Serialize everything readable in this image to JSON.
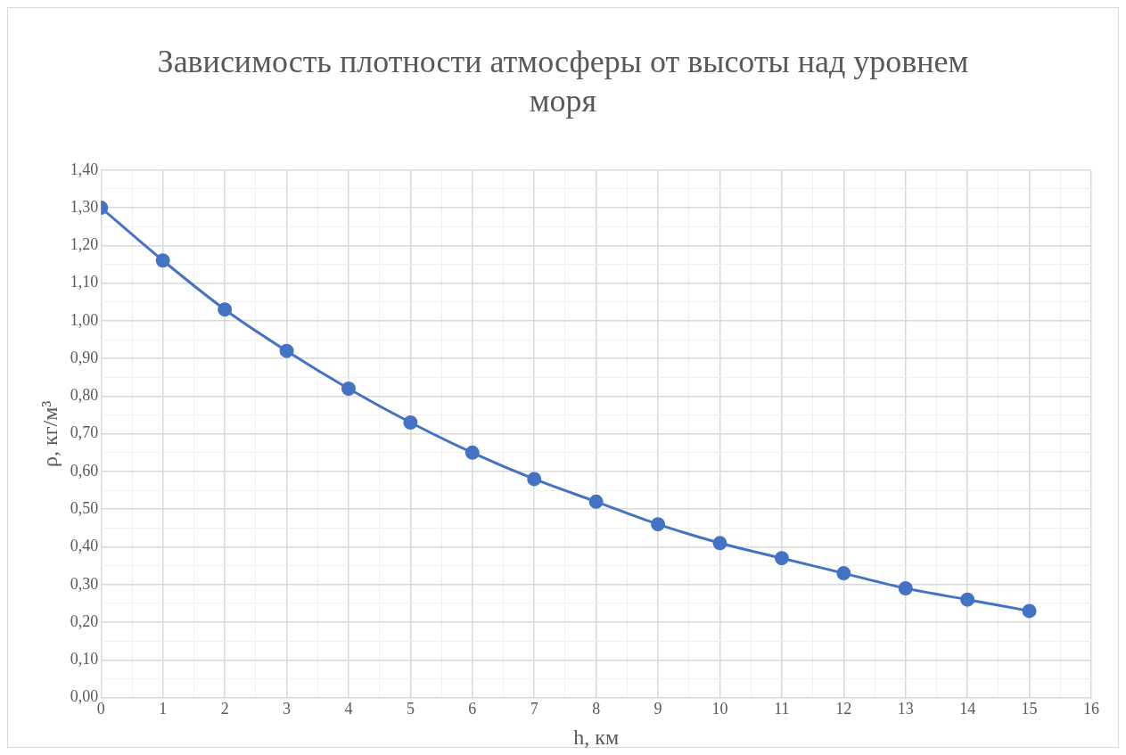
{
  "chart_data": {
    "type": "line",
    "title": "Зависимость плотности атмосферы от высоты  над уровнем моря",
    "xlabel": "h, км",
    "ylabel": "ρ, кг/м³",
    "x": [
      0,
      1,
      2,
      3,
      4,
      5,
      6,
      7,
      8,
      9,
      10,
      11,
      12,
      13,
      14,
      15
    ],
    "series": [
      {
        "color": "#4472c4",
        "values": [
          1.3,
          1.16,
          1.03,
          0.92,
          0.82,
          0.73,
          0.65,
          0.58,
          0.52,
          0.46,
          0.41,
          0.37,
          0.33,
          0.29,
          0.26,
          0.23
        ]
      }
    ],
    "xlim": [
      0,
      16
    ],
    "xticks": [
      0,
      {
        "value": 0.5,
        "label": null
      },
      1,
      {
        "value": 1.5,
        "label": null
      },
      2,
      {
        "value": 2.5,
        "label": null
      },
      3,
      {
        "value": 3.5,
        "label": null
      },
      4,
      {
        "value": 4.5,
        "label": null
      },
      5,
      {
        "value": 5.5,
        "label": null
      },
      6,
      {
        "value": 6.5,
        "label": null
      },
      7,
      {
        "value": 7.5,
        "label": null
      },
      8,
      {
        "value": 8.5,
        "label": null
      },
      9,
      {
        "value": 9.5,
        "label": null
      },
      10,
      {
        "value": 10.5,
        "label": null
      },
      11,
      {
        "value": 11.5,
        "label": null
      },
      12,
      {
        "value": 12.5,
        "label": null
      },
      13,
      {
        "value": 13.5,
        "label": null
      },
      14,
      {
        "value": 14.5,
        "label": null
      },
      15,
      {
        "value": 15.5,
        "label": null
      },
      16
    ],
    "ylim": [
      0,
      1.4
    ],
    "yticks": [
      {
        "value": 0,
        "label": "0,00"
      },
      {
        "value": 0.05,
        "label": null
      },
      {
        "value": 0.1,
        "label": "0,10"
      },
      {
        "value": 0.15,
        "label": null
      },
      {
        "value": 0.2,
        "label": "0,20"
      },
      {
        "value": 0.25,
        "label": null
      },
      {
        "value": 0.3,
        "label": "0,30"
      },
      {
        "value": 0.35,
        "label": null
      },
      {
        "value": 0.4,
        "label": "0,40"
      },
      {
        "value": 0.45,
        "label": null
      },
      {
        "value": 0.5,
        "label": "0,50"
      },
      {
        "value": 0.55,
        "label": null
      },
      {
        "value": 0.6,
        "label": "0,60"
      },
      {
        "value": 0.65,
        "label": null
      },
      {
        "value": 0.7,
        "label": "0,70"
      },
      {
        "value": 0.75,
        "label": null
      },
      {
        "value": 0.8,
        "label": "0,80"
      },
      {
        "value": 0.85,
        "label": null
      },
      {
        "value": 0.9,
        "label": "0,90"
      },
      {
        "value": 0.95,
        "label": null
      },
      {
        "value": 1.0,
        "label": "1,00"
      },
      {
        "value": 1.05,
        "label": null
      },
      {
        "value": 1.1,
        "label": "1,10"
      },
      {
        "value": 1.15,
        "label": null
      },
      {
        "value": 1.2,
        "label": "1,20"
      },
      {
        "value": 1.25,
        "label": null
      },
      {
        "value": 1.3,
        "label": "1,30"
      },
      {
        "value": 1.35,
        "label": null
      },
      {
        "value": 1.4,
        "label": "1,40"
      }
    ],
    "grid": true,
    "legend": false,
    "marker": "circle",
    "line_style": "solid"
  }
}
